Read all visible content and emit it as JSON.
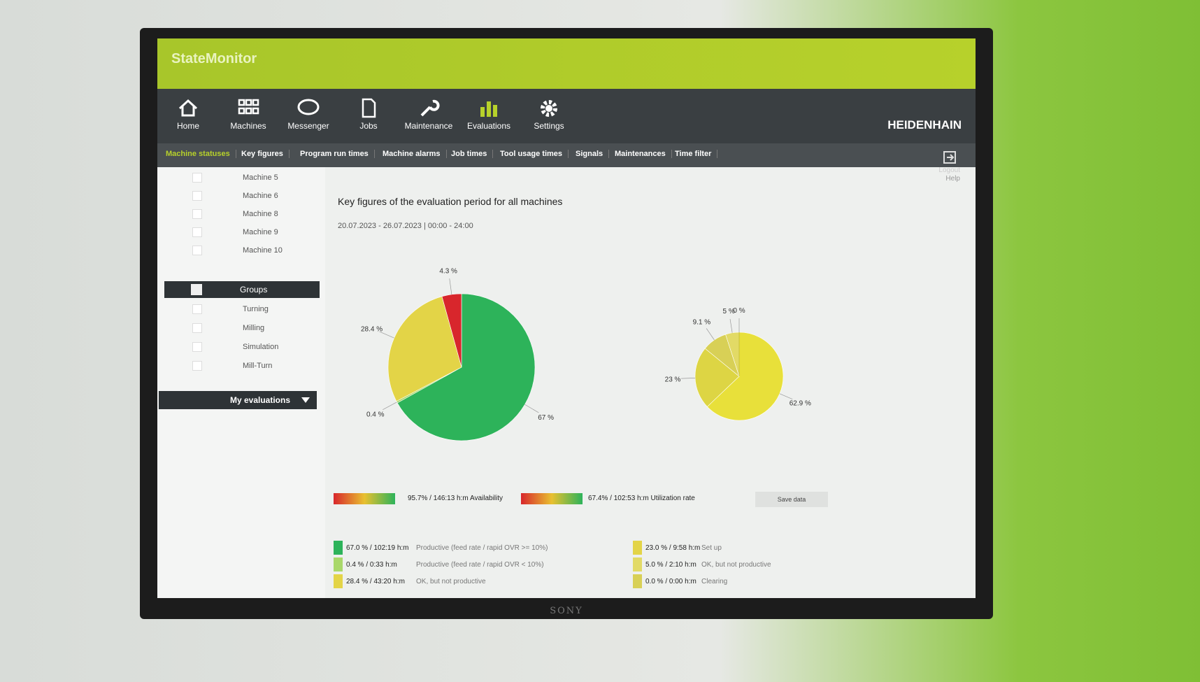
{
  "header": {
    "app_title": "StateMonitor",
    "brand": "HEIDENHAIN",
    "logout": "Logout",
    "help": "Help"
  },
  "nav": [
    "Home",
    "Machines",
    "Messenger",
    "Jobs",
    "Maintenance",
    "Evaluations",
    "Settings"
  ],
  "tabs": [
    "Machine statuses",
    "Key figures",
    "Program run times",
    "Machine alarms",
    "Job times",
    "Tool usage times",
    "Signals",
    "Maintenances",
    "Time filter"
  ],
  "sidebar": {
    "machines": [
      "Machine 5",
      "Machine 6",
      "Machine 8",
      "Machine 9",
      "Machine 10"
    ],
    "groups_title": "Groups",
    "groups": [
      "Turning",
      "Milling",
      "Simulation",
      "Mill-Turn"
    ],
    "my_evaluations": "My evaluations"
  },
  "main": {
    "title": "Key figures of the evaluation period for all machines",
    "period": "20.07.2023 - 26.07.2023 | 00:00 - 24:00",
    "availability": "95.7% / 146:13 h:m Availability",
    "utilization": "67.4% / 102:53 h:m Utilization rate",
    "save": "Save data"
  },
  "chart_data": [
    {
      "type": "pie",
      "values": [
        67,
        0.4,
        28.4,
        4.3
      ],
      "value_labels": [
        "67 %",
        "0.4 %",
        "28.4 %",
        "4.3 %"
      ],
      "colors": [
        "#2db35a",
        "#a9d86a",
        "#e3d447",
        "#d8262c"
      ]
    },
    {
      "type": "pie",
      "values": [
        62.9,
        23,
        9.1,
        5,
        0
      ],
      "value_labels": [
        "62.9 %",
        "23 %",
        "9.1 %",
        "5 %",
        "0 %"
      ],
      "colors": [
        "#e8e03a",
        "#ddd544",
        "#d8d056",
        "#e2da66",
        "#cfc84a"
      ]
    }
  ],
  "legend": {
    "left": [
      [
        "67.0 % / 102:19 h:m",
        "Productive (feed rate / rapid OVR >= 10%)"
      ],
      [
        "0.4 % / 0:33 h:m",
        "Productive (feed rate / rapid OVR < 10%)"
      ],
      [
        "28.4 % / 43:20 h:m",
        "OK, but not productive"
      ]
    ],
    "right": [
      [
        "23.0 % / 9:58 h:m",
        "Set up"
      ],
      [
        "5.0 % / 2:10 h:m",
        "OK, but not productive"
      ],
      [
        "0.0 % / 0:00 h:m",
        "Clearing"
      ]
    ]
  },
  "bezel": "SONY"
}
